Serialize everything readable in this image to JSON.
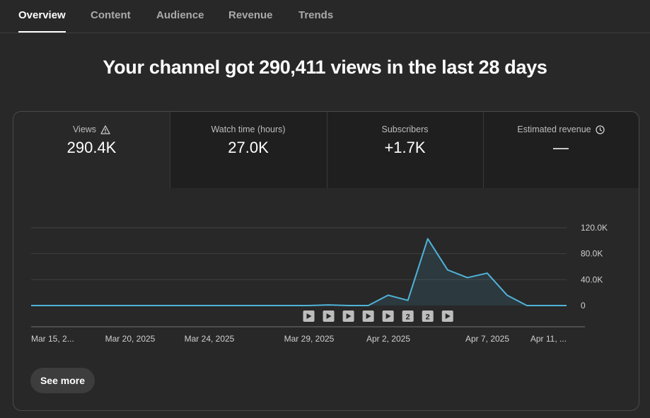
{
  "tabs": [
    {
      "label": "Overview",
      "active": true
    },
    {
      "label": "Content",
      "active": false
    },
    {
      "label": "Audience",
      "active": false
    },
    {
      "label": "Revenue",
      "active": false
    },
    {
      "label": "Trends",
      "active": false
    }
  ],
  "headline": "Your channel got 290,411 views in the last 28 days",
  "metrics": [
    {
      "label": "Views",
      "value": "290.4K",
      "icon": "warning-icon"
    },
    {
      "label": "Watch time (hours)",
      "value": "27.0K"
    },
    {
      "label": "Subscribers",
      "value": "+1.7K"
    },
    {
      "label": "Estimated revenue",
      "value": "—",
      "icon": "clock-icon"
    }
  ],
  "colors": {
    "line": "#4fb3d9",
    "background": "#282828"
  },
  "chart_data": {
    "type": "area",
    "x_tick_labels": [
      "Mar 15, 2...",
      "Mar 20, 2025",
      "Mar 24, 2025",
      "Mar 29, 2025",
      "Apr 2, 2025",
      "Apr 7, 2025",
      "Apr 11, ..."
    ],
    "y_tick_labels": [
      "120.0K",
      "80.0K",
      "40.0K",
      "0"
    ],
    "ylim": [
      0,
      120000
    ],
    "x": [
      "Mar 15",
      "Mar 16",
      "Mar 17",
      "Mar 18",
      "Mar 19",
      "Mar 20",
      "Mar 21",
      "Mar 22",
      "Mar 23",
      "Mar 24",
      "Mar 25",
      "Mar 26",
      "Mar 27",
      "Mar 28",
      "Mar 29",
      "Mar 30",
      "Mar 31",
      "Apr 1",
      "Apr 2",
      "Apr 3",
      "Apr 4",
      "Apr 5",
      "Apr 6",
      "Apr 7",
      "Apr 8",
      "Apr 9",
      "Apr 10",
      "Apr 11"
    ],
    "values": [
      0,
      0,
      0,
      0,
      0,
      0,
      0,
      0,
      0,
      0,
      0,
      0,
      0,
      0,
      0,
      1000,
      0,
      0,
      16000,
      8000,
      103000,
      55000,
      43000,
      50000,
      16000,
      0,
      0,
      0
    ],
    "markers": [
      {
        "date": "Mar 29",
        "label": "play"
      },
      {
        "date": "Mar 30",
        "label": "play"
      },
      {
        "date": "Mar 31",
        "label": "play"
      },
      {
        "date": "Apr 1",
        "label": "play"
      },
      {
        "date": "Apr 2",
        "label": "play"
      },
      {
        "date": "Apr 3",
        "label": "2"
      },
      {
        "date": "Apr 4",
        "label": "2"
      },
      {
        "date": "Apr 5",
        "label": "play"
      }
    ],
    "grid": true
  },
  "see_more_label": "See more"
}
